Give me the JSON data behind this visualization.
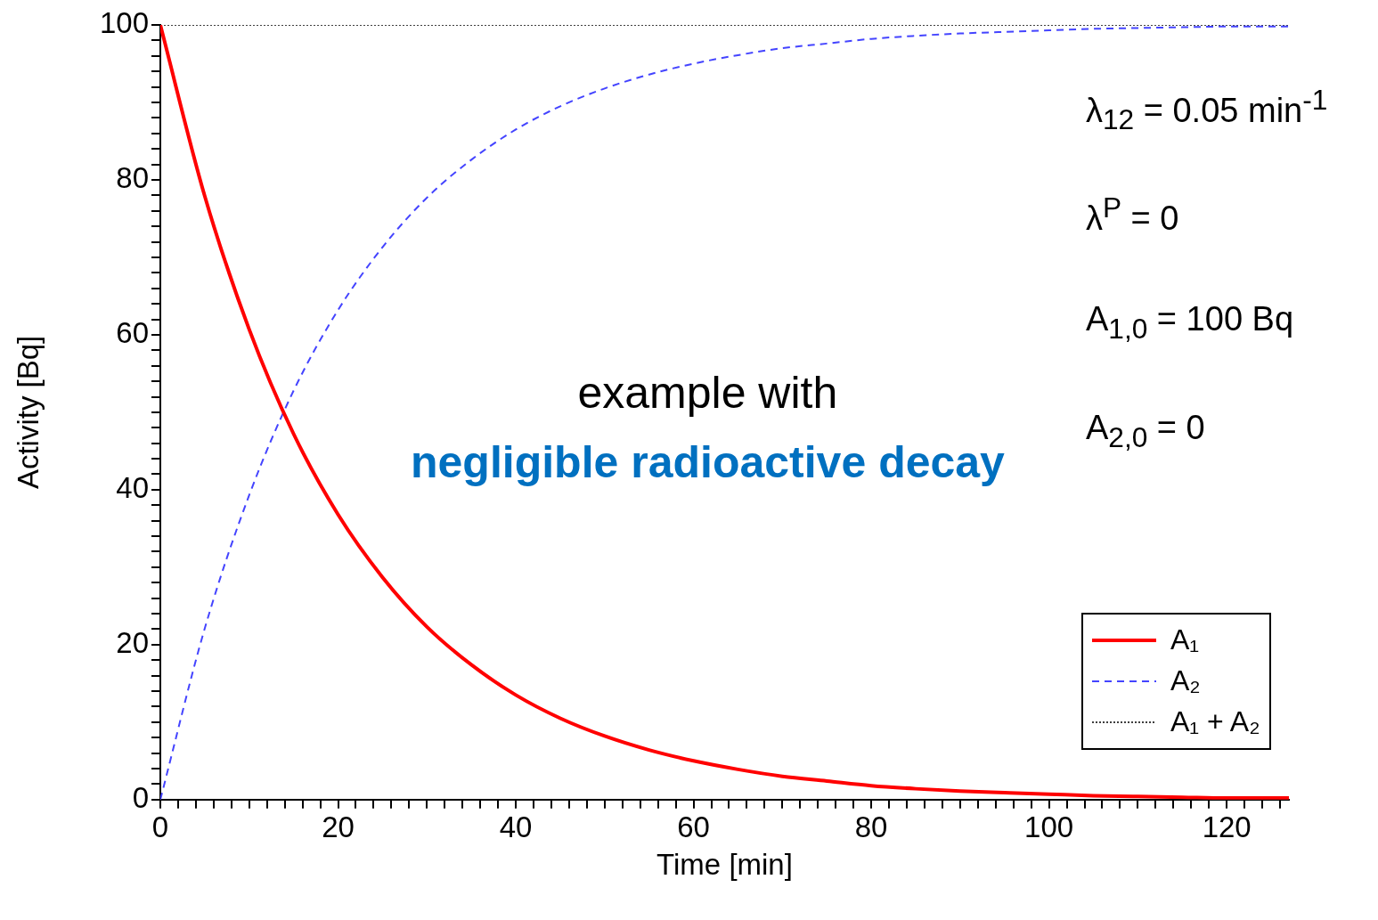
{
  "chart_data": {
    "type": "line",
    "xlabel": "Time [min]",
    "ylabel": "Activity [Bq]",
    "x": [
      0,
      5,
      10,
      15,
      20,
      25,
      30,
      35,
      40,
      45,
      50,
      55,
      60,
      65,
      70,
      75,
      80,
      85,
      90,
      95,
      100,
      105,
      110,
      115,
      120,
      127
    ],
    "xlim": [
      0,
      127
    ],
    "xticks": [
      0,
      {
        "value": 2,
        "label": null
      },
      {
        "value": 4,
        "label": null
      },
      {
        "value": 6,
        "label": null
      },
      {
        "value": 8,
        "label": null
      },
      {
        "value": 10,
        "label": null
      },
      {
        "value": 12,
        "label": null
      },
      {
        "value": 14,
        "label": null
      },
      {
        "value": 16,
        "label": null
      },
      {
        "value": 18,
        "label": null
      },
      20,
      {
        "value": 22,
        "label": null
      },
      {
        "value": 24,
        "label": null
      },
      {
        "value": 26,
        "label": null
      },
      {
        "value": 28,
        "label": null
      },
      {
        "value": 30,
        "label": null
      },
      {
        "value": 32,
        "label": null
      },
      {
        "value": 34,
        "label": null
      },
      {
        "value": 36,
        "label": null
      },
      {
        "value": 38,
        "label": null
      },
      40,
      {
        "value": 42,
        "label": null
      },
      {
        "value": 44,
        "label": null
      },
      {
        "value": 46,
        "label": null
      },
      {
        "value": 48,
        "label": null
      },
      {
        "value": 50,
        "label": null
      },
      {
        "value": 52,
        "label": null
      },
      {
        "value": 54,
        "label": null
      },
      {
        "value": 56,
        "label": null
      },
      {
        "value": 58,
        "label": null
      },
      60,
      {
        "value": 62,
        "label": null
      },
      {
        "value": 64,
        "label": null
      },
      {
        "value": 66,
        "label": null
      },
      {
        "value": 68,
        "label": null
      },
      {
        "value": 70,
        "label": null
      },
      {
        "value": 72,
        "label": null
      },
      {
        "value": 74,
        "label": null
      },
      {
        "value": 76,
        "label": null
      },
      {
        "value": 78,
        "label": null
      },
      80,
      {
        "value": 82,
        "label": null
      },
      {
        "value": 84,
        "label": null
      },
      {
        "value": 86,
        "label": null
      },
      {
        "value": 88,
        "label": null
      },
      {
        "value": 90,
        "label": null
      },
      {
        "value": 92,
        "label": null
      },
      {
        "value": 94,
        "label": null
      },
      {
        "value": 96,
        "label": null
      },
      {
        "value": 98,
        "label": null
      },
      100,
      {
        "value": 102,
        "label": null
      },
      {
        "value": 104,
        "label": null
      },
      {
        "value": 106,
        "label": null
      },
      {
        "value": 108,
        "label": null
      },
      {
        "value": 110,
        "label": null
      },
      {
        "value": 112,
        "label": null
      },
      {
        "value": 114,
        "label": null
      },
      {
        "value": 116,
        "label": null
      },
      {
        "value": 118,
        "label": null
      },
      120,
      {
        "value": 122,
        "label": null
      },
      {
        "value": 124,
        "label": null
      },
      {
        "value": 126,
        "label": null
      }
    ],
    "ylim": [
      0,
      100
    ],
    "yticks": [
      0,
      {
        "value": 2,
        "label": null
      },
      {
        "value": 4,
        "label": null
      },
      {
        "value": 6,
        "label": null
      },
      {
        "value": 8,
        "label": null
      },
      {
        "value": 10,
        "label": null
      },
      {
        "value": 12,
        "label": null
      },
      {
        "value": 14,
        "label": null
      },
      {
        "value": 16,
        "label": null
      },
      {
        "value": 18,
        "label": null
      },
      20,
      {
        "value": 22,
        "label": null
      },
      {
        "value": 24,
        "label": null
      },
      {
        "value": 26,
        "label": null
      },
      {
        "value": 28,
        "label": null
      },
      {
        "value": 30,
        "label": null
      },
      {
        "value": 32,
        "label": null
      },
      {
        "value": 34,
        "label": null
      },
      {
        "value": 36,
        "label": null
      },
      {
        "value": 38,
        "label": null
      },
      40,
      {
        "value": 42,
        "label": null
      },
      {
        "value": 44,
        "label": null
      },
      {
        "value": 46,
        "label": null
      },
      {
        "value": 48,
        "label": null
      },
      {
        "value": 50,
        "label": null
      },
      {
        "value": 52,
        "label": null
      },
      {
        "value": 54,
        "label": null
      },
      {
        "value": 56,
        "label": null
      },
      {
        "value": 58,
        "label": null
      },
      60,
      {
        "value": 62,
        "label": null
      },
      {
        "value": 64,
        "label": null
      },
      {
        "value": 66,
        "label": null
      },
      {
        "value": 68,
        "label": null
      },
      {
        "value": 70,
        "label": null
      },
      {
        "value": 72,
        "label": null
      },
      {
        "value": 74,
        "label": null
      },
      {
        "value": 76,
        "label": null
      },
      {
        "value": 78,
        "label": null
      },
      80,
      {
        "value": 82,
        "label": null
      },
      {
        "value": 84,
        "label": null
      },
      {
        "value": 86,
        "label": null
      },
      {
        "value": 88,
        "label": null
      },
      {
        "value": 90,
        "label": null
      },
      {
        "value": 92,
        "label": null
      },
      {
        "value": 94,
        "label": null
      },
      {
        "value": 96,
        "label": null
      },
      {
        "value": 98,
        "label": null
      },
      100
    ],
    "grid": false,
    "legend": "bottom right",
    "marker": "none",
    "series": [
      {
        "name": "A₁",
        "color": "#ff0000",
        "line_style": "solid",
        "values": [
          100,
          77.9,
          60.7,
          47.2,
          36.8,
          28.7,
          22.3,
          17.4,
          13.5,
          10.5,
          8.2,
          6.4,
          5.0,
          3.9,
          3.0,
          2.4,
          1.8,
          1.4,
          1.1,
          0.9,
          0.7,
          0.5,
          0.4,
          0.3,
          0.2,
          0.2
        ]
      },
      {
        "name": "A₂",
        "color": "#4444ff",
        "line_style": "dashed",
        "values": [
          0,
          22.1,
          39.3,
          52.8,
          63.2,
          71.3,
          77.7,
          82.6,
          86.5,
          89.5,
          91.8,
          93.6,
          95.0,
          96.1,
          97.0,
          97.6,
          98.2,
          98.6,
          98.9,
          99.1,
          99.3,
          99.5,
          99.6,
          99.7,
          99.8,
          99.8
        ]
      },
      {
        "name": "A₁ + A₂",
        "color": "#000000",
        "line_style": "dotted",
        "values": [
          100,
          100,
          100,
          100,
          100,
          100,
          100,
          100,
          100,
          100,
          100,
          100,
          100,
          100,
          100,
          100,
          100,
          100,
          100,
          100,
          100,
          100,
          100,
          100,
          100,
          100
        ]
      }
    ],
    "annotations": [
      "example with",
      "negligible radioactive decay",
      "λ$_{12}$ = 0.05 min$^{-1}$",
      "λ$^{P}$ = 0",
      "A$_{1,0}$ = 100 Bq",
      "A$_{2,0}$ = 0"
    ]
  }
}
